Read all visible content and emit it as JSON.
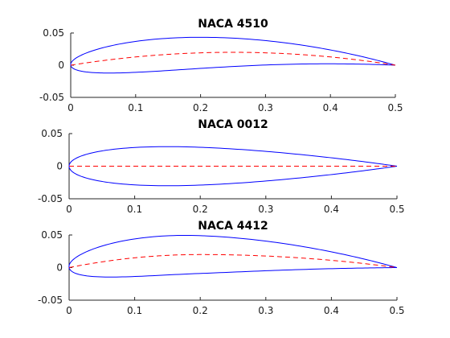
{
  "chart_data": [
    {
      "type": "line",
      "title": "NACA 4510",
      "xlim": [
        0,
        0.5
      ],
      "ylim": [
        -0.05,
        0.05
      ],
      "xticks": [
        "0",
        "0.1",
        "0.2",
        "0.3",
        "0.4",
        "0.5"
      ],
      "yticks": [
        "0.05",
        "0",
        "-0.05"
      ],
      "grid": false,
      "chord": 0.5,
      "max_camber": 0.04,
      "camber_position": 0.5,
      "thickness": 0.1,
      "series": [
        {
          "role": "airfoil_outline",
          "style": "solid",
          "color": "#0000ff",
          "upper": {
            "x": [
              0,
              0.01,
              0.03,
              0.06,
              0.1,
              0.15,
              0.2,
              0.25,
              0.3,
              0.35,
              0.4,
              0.45,
              0.5
            ],
            "y": [
              0,
              0.011,
              0.021,
              0.031,
              0.038,
              0.042,
              0.043,
              0.041,
              0.036,
              0.029,
              0.02,
              0.01,
              0
            ]
          },
          "lower": {
            "x": [
              0,
              0.01,
              0.03,
              0.06,
              0.1,
              0.15,
              0.2,
              0.25,
              0.3,
              0.35,
              0.4,
              0.45,
              0.5
            ],
            "y": [
              0,
              -0.006,
              -0.01,
              -0.012,
              -0.011,
              -0.008,
              -0.005,
              -0.002,
              0,
              0.001,
              0.002,
              0.001,
              0
            ]
          }
        },
        {
          "role": "mean_camber_line",
          "style": "dashed",
          "color": "#ff0000",
          "x": [
            0,
            0.05,
            0.1,
            0.15,
            0.2,
            0.25,
            0.3,
            0.35,
            0.4,
            0.45,
            0.5
          ],
          "y": [
            0,
            0.0072,
            0.0128,
            0.0168,
            0.0192,
            0.02,
            0.0192,
            0.0168,
            0.0128,
            0.0072,
            0
          ]
        }
      ]
    },
    {
      "type": "line",
      "title": "NACA 0012",
      "xlim": [
        0,
        0.5
      ],
      "ylim": [
        -0.05,
        0.05
      ],
      "xticks": [
        "0",
        "0.1",
        "0.2",
        "0.3",
        "0.4",
        "0.5"
      ],
      "yticks": [
        "0.05",
        "0",
        "-0.05"
      ],
      "grid": false,
      "chord": 0.5,
      "max_camber": 0,
      "camber_position": 0,
      "thickness": 0.12,
      "series": [
        {
          "role": "airfoil_outline",
          "style": "solid",
          "color": "#0000ff",
          "upper": {
            "x": [
              0,
              0.01,
              0.025,
              0.05,
              0.1,
              0.15,
              0.2,
              0.25,
              0.3,
              0.35,
              0.4,
              0.45,
              0.5
            ],
            "y": [
              0,
              0.0116,
              0.0177,
              0.0236,
              0.0291,
              0.03,
              0.0287,
              0.0265,
              0.0229,
              0.0184,
              0.013,
              0.0069,
              0
            ]
          },
          "lower": {
            "x": [
              0,
              0.01,
              0.025,
              0.05,
              0.1,
              0.15,
              0.2,
              0.25,
              0.3,
              0.35,
              0.4,
              0.45,
              0.5
            ],
            "y": [
              0,
              -0.0116,
              -0.0177,
              -0.0236,
              -0.0291,
              -0.03,
              -0.0287,
              -0.0265,
              -0.0229,
              -0.0184,
              -0.013,
              -0.0069,
              0
            ]
          }
        },
        {
          "role": "mean_camber_line",
          "style": "dashed",
          "color": "#ff0000",
          "x": [
            0,
            0.5
          ],
          "y": [
            0,
            0
          ]
        }
      ]
    },
    {
      "type": "line",
      "title": "NACA 4412",
      "xlim": [
        0,
        0.5
      ],
      "ylim": [
        -0.05,
        0.05
      ],
      "xticks": [
        "0",
        "0.1",
        "0.2",
        "0.3",
        "0.4",
        "0.5"
      ],
      "yticks": [
        "0.05",
        "0",
        "-0.05"
      ],
      "grid": false,
      "chord": 0.5,
      "max_camber": 0.04,
      "camber_position": 0.4,
      "thickness": 0.12,
      "series": [
        {
          "role": "airfoil_outline",
          "style": "solid",
          "color": "#0000ff",
          "upper": {
            "x": [
              0,
              0.01,
              0.03,
              0.06,
              0.1,
              0.15,
              0.18,
              0.22,
              0.27,
              0.32,
              0.37,
              0.42,
              0.46,
              0.5
            ],
            "y": [
              0,
              0.014,
              0.026,
              0.037,
              0.045,
              0.049,
              0.05,
              0.049,
              0.045,
              0.038,
              0.029,
              0.018,
              0.009,
              0
            ]
          },
          "lower": {
            "x": [
              0,
              0.01,
              0.03,
              0.06,
              0.1,
              0.15,
              0.2,
              0.25,
              0.3,
              0.35,
              0.4,
              0.45,
              0.5
            ],
            "y": [
              0,
              -0.007,
              -0.01,
              -0.011,
              -0.01,
              -0.008,
              -0.006,
              -0.004,
              -0.003,
              -0.002,
              -0.001,
              0,
              0
            ]
          }
        },
        {
          "role": "mean_camber_line",
          "style": "dashed",
          "color": "#ff0000",
          "x": [
            0,
            0.05,
            0.1,
            0.15,
            0.2,
            0.25,
            0.3,
            0.35,
            0.4,
            0.45,
            0.5
          ],
          "y": [
            0,
            0.0088,
            0.015,
            0.0188,
            0.02,
            0.0197,
            0.0188,
            0.0172,
            0.015,
            0.0122,
            0
          ]
        }
      ]
    }
  ],
  "colors": {
    "axes": "#262626",
    "outline": "#0000ff",
    "camber": "#ff0000",
    "background": "#ffffff"
  }
}
